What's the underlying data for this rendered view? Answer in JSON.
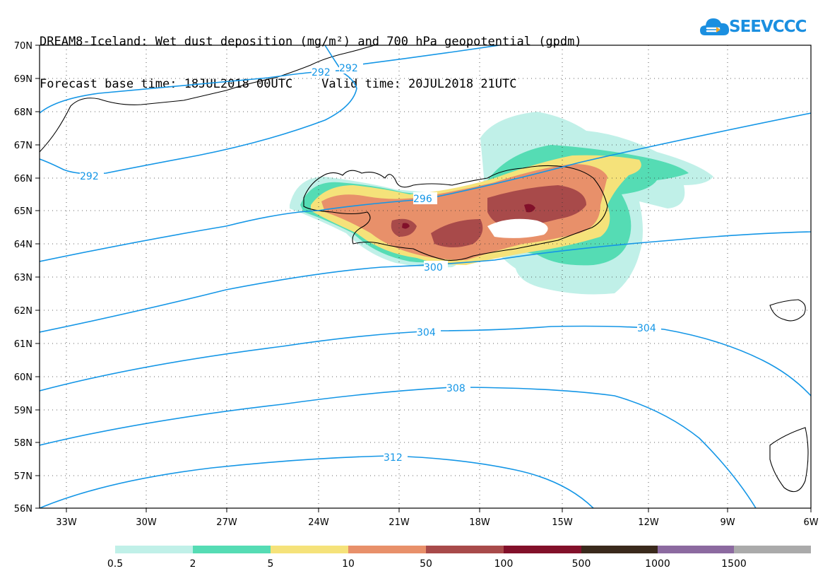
{
  "title": {
    "line1": "DREAM8-Iceland: Wet dust deposition (mg/m²) and 700 hPa geopotential (gpdm)",
    "line2": "Forecast base time: 18JUL2018 00UTC    Valid time: 20JUL2018 21UTC"
  },
  "logo": {
    "text": "SEEVCCC",
    "icon": "cloud-icon"
  },
  "map": {
    "lat_labels": [
      "70N",
      "69N",
      "68N",
      "67N",
      "66N",
      "65N",
      "64N",
      "63N",
      "62N",
      "61N",
      "60N",
      "59N",
      "58N",
      "57N",
      "56N"
    ],
    "lon_labels": [
      "33W",
      "30W",
      "27W",
      "24W",
      "21W",
      "18W",
      "15W",
      "12W",
      "9W",
      "6W"
    ],
    "contour_labels": [
      "292",
      "292",
      "292",
      "296",
      "300",
      "304",
      "304",
      "308",
      "312"
    ],
    "contour_color": "#1496e6"
  },
  "colorbar": {
    "labels": [
      "0.5",
      "2",
      "5",
      "10",
      "50",
      "100",
      "500",
      "1000",
      "1500"
    ],
    "colors": [
      "#c0f0e8",
      "#55dcb4",
      "#f5e27a",
      "#e8906a",
      "#a84a4a",
      "#82102a",
      "#3a2a1c",
      "#8c6aa0",
      "#aaaaaa"
    ]
  }
}
